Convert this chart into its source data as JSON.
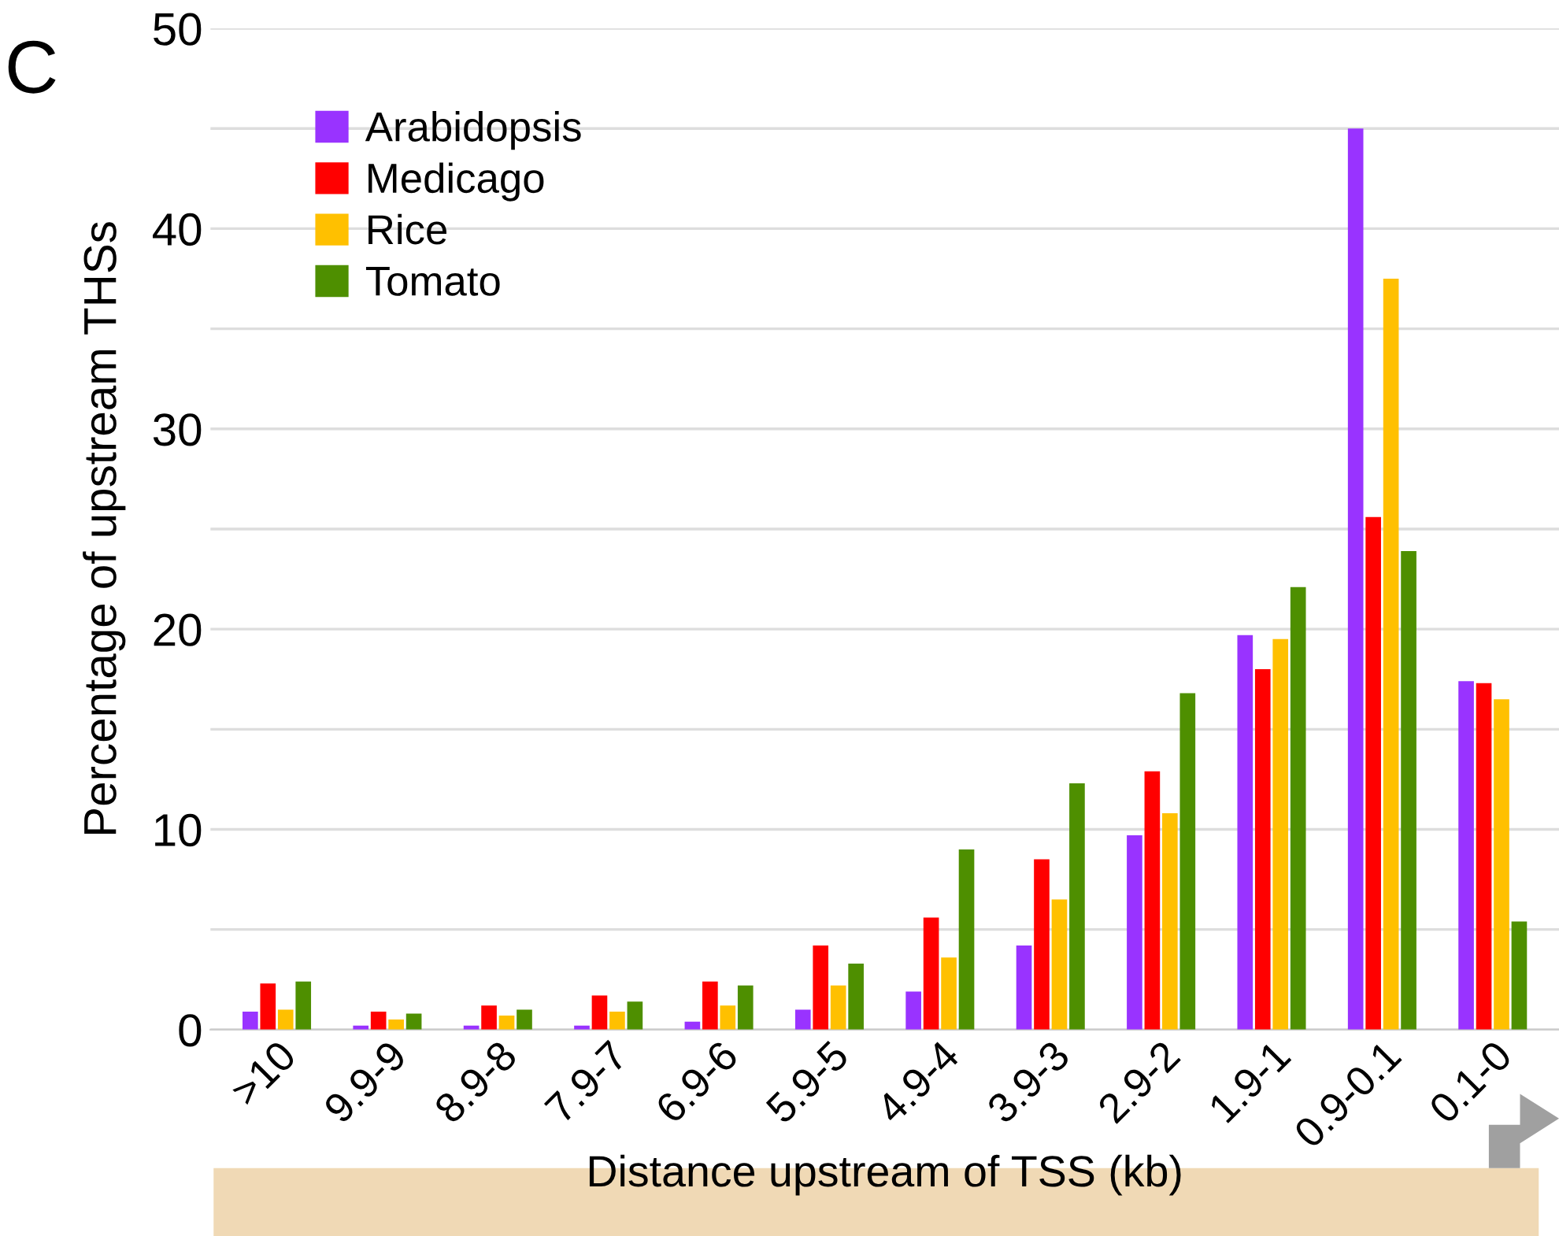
{
  "chart_data": {
    "type": "bar",
    "xlabel": "Distance upstream of TSS (kb)",
    "ylabel": "Percentage of upstream THSs",
    "annotations": [
      "C"
    ],
    "categories": [
      ">10",
      "9.9-9",
      "8.9-8",
      "7.9-7",
      "6.9-6",
      "5.9-5",
      "4.9-4",
      "3.9-3",
      "2.9-2",
      "1.9-1",
      "0.9-0.1",
      "0.1-0"
    ],
    "series": [
      {
        "name": "Arabidopsis",
        "color": "#9933ff",
        "values": [
          0.9,
          0.2,
          0.2,
          0.2,
          0.4,
          1.0,
          1.9,
          4.2,
          9.7,
          19.7,
          45.0,
          17.4
        ]
      },
      {
        "name": "Medicago",
        "color": "#ff0000",
        "values": [
          2.3,
          0.9,
          1.2,
          1.7,
          2.4,
          4.2,
          5.6,
          8.5,
          12.9,
          18.0,
          25.6,
          17.3
        ]
      },
      {
        "name": "Rice",
        "color": "#ffc000",
        "values": [
          1.0,
          0.5,
          0.7,
          0.9,
          1.2,
          2.2,
          3.6,
          6.5,
          10.8,
          19.5,
          37.5,
          16.5
        ]
      },
      {
        "name": "Tomato",
        "color": "#4e8f00",
        "values": [
          2.4,
          0.8,
          1.0,
          1.4,
          2.2,
          3.3,
          9.0,
          12.3,
          16.8,
          22.1,
          23.9,
          5.4
        ]
      }
    ],
    "ylim": [
      0,
      50
    ],
    "yticks": [
      0,
      {
        "value": 5,
        "label": null
      },
      10,
      {
        "value": 15,
        "label": null
      },
      20,
      {
        "value": 25,
        "label": null
      },
      30,
      {
        "value": 35,
        "label": null
      },
      40,
      {
        "value": 45,
        "label": null
      },
      50
    ],
    "grid": "y",
    "legend": "top left"
  }
}
